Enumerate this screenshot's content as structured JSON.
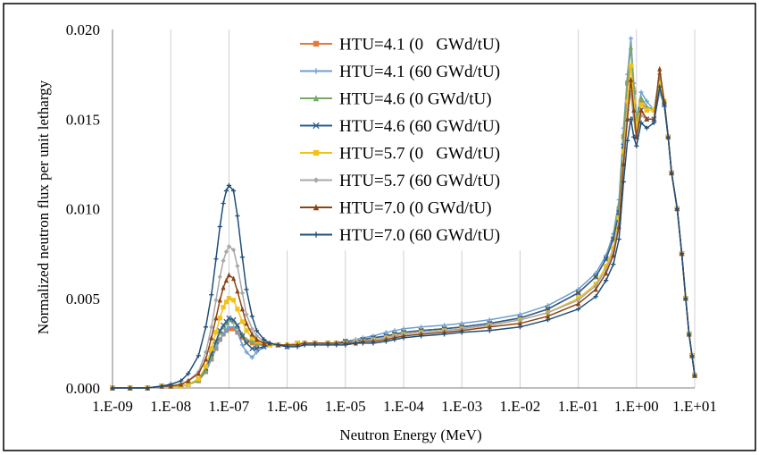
{
  "chart_data": {
    "type": "line",
    "title": "",
    "xlabel": "Neutron Energy (MeV)",
    "ylabel": "Normalized neutron flux per unit lethargy",
    "x_scale": "log",
    "xlim": [
      1e-09,
      10
    ],
    "ylim": [
      0,
      0.02
    ],
    "x_ticks": [
      {
        "value": 1e-09,
        "label": "1.E-09"
      },
      {
        "value": 1e-08,
        "label": "1.E-08"
      },
      {
        "value": 1e-07,
        "label": "1.E-07"
      },
      {
        "value": 1e-06,
        "label": "1.E-06"
      },
      {
        "value": 1e-05,
        "label": "1.E-05"
      },
      {
        "value": 0.0001,
        "label": "1.E-04"
      },
      {
        "value": 0.001,
        "label": "1.E-03"
      },
      {
        "value": 0.01,
        "label": "1.E-02"
      },
      {
        "value": 0.1,
        "label": "1.E-01"
      },
      {
        "value": 1,
        "label": "1.E+00"
      },
      {
        "value": 10,
        "label": "1.E+01"
      }
    ],
    "y_ticks": [
      {
        "value": 0,
        "label": "0.000"
      },
      {
        "value": 0.005,
        "label": "0.005"
      },
      {
        "value": 0.01,
        "label": "0.010"
      },
      {
        "value": 0.015,
        "label": "0.015"
      },
      {
        "value": 0.02,
        "label": "0.020"
      }
    ],
    "grid": {
      "vertical": true,
      "horizontal": false
    },
    "legend_position": "top-center",
    "x": [
      1e-09,
      2e-09,
      4e-09,
      7e-09,
      1e-08,
      1.5e-08,
      2e-08,
      3e-08,
      4e-08,
      5e-08,
      6e-08,
      7e-08,
      8e-08,
      9e-08,
      1e-07,
      1.2e-07,
      1.4e-07,
      1.7e-07,
      2e-07,
      2.5e-07,
      3e-07,
      4e-07,
      5e-07,
      7e-07,
      1e-06,
      1.5e-06,
      2e-06,
      3e-06,
      5e-06,
      7e-06,
      1e-05,
      1.5e-05,
      2e-05,
      3e-05,
      5e-05,
      7e-05,
      0.0001,
      0.0002,
      0.0005,
      0.001,
      0.003,
      0.01,
      0.03,
      0.1,
      0.2,
      0.3,
      0.4,
      0.5,
      0.6,
      0.7,
      0.8,
      0.9,
      1,
      1.2,
      1.5,
      2,
      2.5,
      3,
      3.5,
      4,
      5,
      6,
      7,
      8,
      9,
      10
    ],
    "series": [
      {
        "name": "HTU=4.1 (0   GWd/tU)",
        "color": "#e07b39",
        "marker": "square",
        "values": [
          0.0,
          0.0,
          0.0,
          0.0001,
          0.0001,
          0.0001,
          0.0002,
          0.0004,
          0.0009,
          0.0016,
          0.0022,
          0.0027,
          0.003,
          0.0032,
          0.0033,
          0.0033,
          0.0031,
          0.0028,
          0.0026,
          0.0025,
          0.0024,
          0.0024,
          0.0024,
          0.0024,
          0.0024,
          0.0025,
          0.0025,
          0.0025,
          0.0025,
          0.0025,
          0.0026,
          0.0026,
          0.0027,
          0.0028,
          0.0029,
          0.003,
          0.0031,
          0.0032,
          0.0033,
          0.0034,
          0.0036,
          0.0039,
          0.0044,
          0.0053,
          0.0062,
          0.0072,
          0.0083,
          0.01,
          0.014,
          0.017,
          0.018,
          0.0165,
          0.0145,
          0.016,
          0.0155,
          0.0155,
          0.017,
          0.016,
          0.014,
          0.012,
          0.01,
          0.0075,
          0.005,
          0.003,
          0.0018,
          0.0007
        ]
      },
      {
        "name": "HTU=4.1 (60 GWd/tU)",
        "color": "#6e9fd1",
        "marker": "plus",
        "values": [
          0.0,
          0.0,
          0.0,
          0.0001,
          0.0001,
          0.0001,
          0.0002,
          0.0004,
          0.0009,
          0.0016,
          0.0022,
          0.0027,
          0.003,
          0.0032,
          0.0034,
          0.0034,
          0.0031,
          0.0024,
          0.002,
          0.0017,
          0.002,
          0.0023,
          0.0024,
          0.0024,
          0.0023,
          0.0025,
          0.0025,
          0.0025,
          0.0025,
          0.0025,
          0.0026,
          0.0027,
          0.0028,
          0.0029,
          0.0031,
          0.0032,
          0.0033,
          0.0034,
          0.0035,
          0.0036,
          0.0038,
          0.0041,
          0.0046,
          0.0055,
          0.0064,
          0.0074,
          0.0086,
          0.0105,
          0.0145,
          0.0175,
          0.0195,
          0.017,
          0.015,
          0.0165,
          0.016,
          0.0155,
          0.0175,
          0.016,
          0.014,
          0.012,
          0.01,
          0.0075,
          0.005,
          0.003,
          0.0018,
          0.0007
        ]
      },
      {
        "name": "HTU=4.6 (0 GWd/tU)",
        "color": "#7aa86a",
        "marker": "triangle",
        "values": [
          0.0,
          0.0,
          0.0,
          0.0001,
          0.0001,
          0.0001,
          0.0002,
          0.0004,
          0.001,
          0.0018,
          0.0025,
          0.0031,
          0.0034,
          0.0036,
          0.0038,
          0.0037,
          0.0034,
          0.003,
          0.0027,
          0.0026,
          0.0025,
          0.0024,
          0.0024,
          0.0024,
          0.0024,
          0.0025,
          0.0025,
          0.0025,
          0.0025,
          0.0025,
          0.0026,
          0.0026,
          0.0027,
          0.0028,
          0.0029,
          0.003,
          0.0031,
          0.0032,
          0.0033,
          0.0034,
          0.0036,
          0.0039,
          0.0044,
          0.0053,
          0.0062,
          0.0072,
          0.0084,
          0.0102,
          0.0142,
          0.0172,
          0.019,
          0.0168,
          0.0148,
          0.0162,
          0.0157,
          0.0155,
          0.0172,
          0.016,
          0.014,
          0.012,
          0.01,
          0.0075,
          0.005,
          0.003,
          0.0018,
          0.0007
        ]
      },
      {
        "name": "HTU=4.6 (60 GWd/tU)",
        "color": "#2e5c8f",
        "marker": "x",
        "values": [
          0.0,
          0.0,
          0.0,
          0.0001,
          0.0001,
          0.0001,
          0.0002,
          0.0005,
          0.0011,
          0.0019,
          0.0026,
          0.0032,
          0.0035,
          0.0037,
          0.0039,
          0.0038,
          0.0035,
          0.0029,
          0.0025,
          0.0022,
          0.0022,
          0.0023,
          0.0024,
          0.0024,
          0.0023,
          0.0025,
          0.0025,
          0.0025,
          0.0025,
          0.0025,
          0.0026,
          0.0026,
          0.0027,
          0.0028,
          0.0029,
          0.003,
          0.0031,
          0.0032,
          0.0033,
          0.0034,
          0.0036,
          0.0039,
          0.0044,
          0.0053,
          0.0062,
          0.0072,
          0.0083,
          0.0098,
          0.0135,
          0.016,
          0.0165,
          0.015,
          0.014,
          0.0155,
          0.015,
          0.015,
          0.0165,
          0.0158,
          0.014,
          0.012,
          0.01,
          0.0075,
          0.005,
          0.003,
          0.0018,
          0.0007
        ]
      },
      {
        "name": "HTU=5.7 (0   GWd/tU)",
        "color": "#f2c21b",
        "marker": "square",
        "values": [
          0.0,
          0.0,
          0.0,
          0.0001,
          0.0001,
          0.0001,
          0.0002,
          0.0005,
          0.0012,
          0.0022,
          0.0031,
          0.0039,
          0.0045,
          0.0048,
          0.005,
          0.0049,
          0.0044,
          0.0037,
          0.0032,
          0.0028,
          0.0026,
          0.0025,
          0.0024,
          0.0024,
          0.0024,
          0.0025,
          0.0025,
          0.0025,
          0.0025,
          0.0025,
          0.0025,
          0.0026,
          0.0026,
          0.0027,
          0.0028,
          0.0029,
          0.003,
          0.0031,
          0.0032,
          0.0033,
          0.0035,
          0.0038,
          0.0042,
          0.005,
          0.0058,
          0.0068,
          0.0078,
          0.0095,
          0.0132,
          0.016,
          0.018,
          0.016,
          0.0145,
          0.0158,
          0.0155,
          0.0155,
          0.017,
          0.016,
          0.014,
          0.012,
          0.01,
          0.0075,
          0.005,
          0.003,
          0.0018,
          0.0007
        ]
      },
      {
        "name": "HTU=5.7 (60 GWd/tU)",
        "color": "#a8a8a8",
        "marker": "diamond",
        "values": [
          0.0,
          0.0,
          0.0,
          0.0001,
          0.0001,
          0.0002,
          0.0004,
          0.0009,
          0.002,
          0.0034,
          0.0049,
          0.0062,
          0.0071,
          0.0076,
          0.0079,
          0.0077,
          0.0068,
          0.0053,
          0.0041,
          0.0033,
          0.0029,
          0.0026,
          0.0025,
          0.0024,
          0.0023,
          0.0024,
          0.0025,
          0.0025,
          0.0025,
          0.0025,
          0.0025,
          0.0026,
          0.0026,
          0.0027,
          0.0028,
          0.0029,
          0.003,
          0.0031,
          0.0032,
          0.0033,
          0.0035,
          0.0038,
          0.0042,
          0.0049,
          0.0057,
          0.0066,
          0.0076,
          0.0092,
          0.0128,
          0.0155,
          0.0165,
          0.015,
          0.014,
          0.0152,
          0.015,
          0.015,
          0.0165,
          0.0158,
          0.014,
          0.012,
          0.01,
          0.0075,
          0.005,
          0.003,
          0.0018,
          0.0007
        ]
      },
      {
        "name": "HTU=7.0 (0 GWd/tU)",
        "color": "#8b4513",
        "marker": "triangle",
        "values": [
          0.0,
          0.0,
          0.0,
          0.0001,
          0.0001,
          0.0002,
          0.0004,
          0.0008,
          0.0016,
          0.0028,
          0.0039,
          0.0049,
          0.0056,
          0.006,
          0.0063,
          0.0061,
          0.0054,
          0.0044,
          0.0036,
          0.003,
          0.0027,
          0.0025,
          0.0025,
          0.0024,
          0.0024,
          0.0024,
          0.0025,
          0.0025,
          0.0025,
          0.0025,
          0.0025,
          0.0025,
          0.0026,
          0.0026,
          0.0027,
          0.0028,
          0.0029,
          0.003,
          0.0031,
          0.0032,
          0.0034,
          0.0036,
          0.004,
          0.0047,
          0.0055,
          0.0064,
          0.0074,
          0.009,
          0.0125,
          0.015,
          0.0172,
          0.0155,
          0.014,
          0.0155,
          0.015,
          0.015,
          0.0178,
          0.016,
          0.014,
          0.012,
          0.01,
          0.0075,
          0.005,
          0.003,
          0.0018,
          0.0007
        ]
      },
      {
        "name": "HTU=7.0 (60 GWd/tU)",
        "color": "#1f4e79",
        "marker": "plus",
        "values": [
          0.0,
          0.0,
          0.0,
          0.0001,
          0.0002,
          0.0004,
          0.0008,
          0.0018,
          0.0034,
          0.0052,
          0.0072,
          0.009,
          0.0103,
          0.011,
          0.0113,
          0.011,
          0.0096,
          0.0073,
          0.0055,
          0.004,
          0.0032,
          0.0027,
          0.0025,
          0.0024,
          0.0023,
          0.0023,
          0.0024,
          0.0024,
          0.0024,
          0.0024,
          0.0024,
          0.0025,
          0.0025,
          0.0025,
          0.0026,
          0.0027,
          0.0028,
          0.0029,
          0.003,
          0.0031,
          0.0032,
          0.0034,
          0.0038,
          0.0044,
          0.0051,
          0.006,
          0.0069,
          0.0083,
          0.0115,
          0.0138,
          0.015,
          0.014,
          0.0135,
          0.0148,
          0.0145,
          0.0148,
          0.0168,
          0.0158,
          0.014,
          0.012,
          0.01,
          0.0075,
          0.005,
          0.003,
          0.0018,
          0.0007
        ]
      }
    ]
  }
}
